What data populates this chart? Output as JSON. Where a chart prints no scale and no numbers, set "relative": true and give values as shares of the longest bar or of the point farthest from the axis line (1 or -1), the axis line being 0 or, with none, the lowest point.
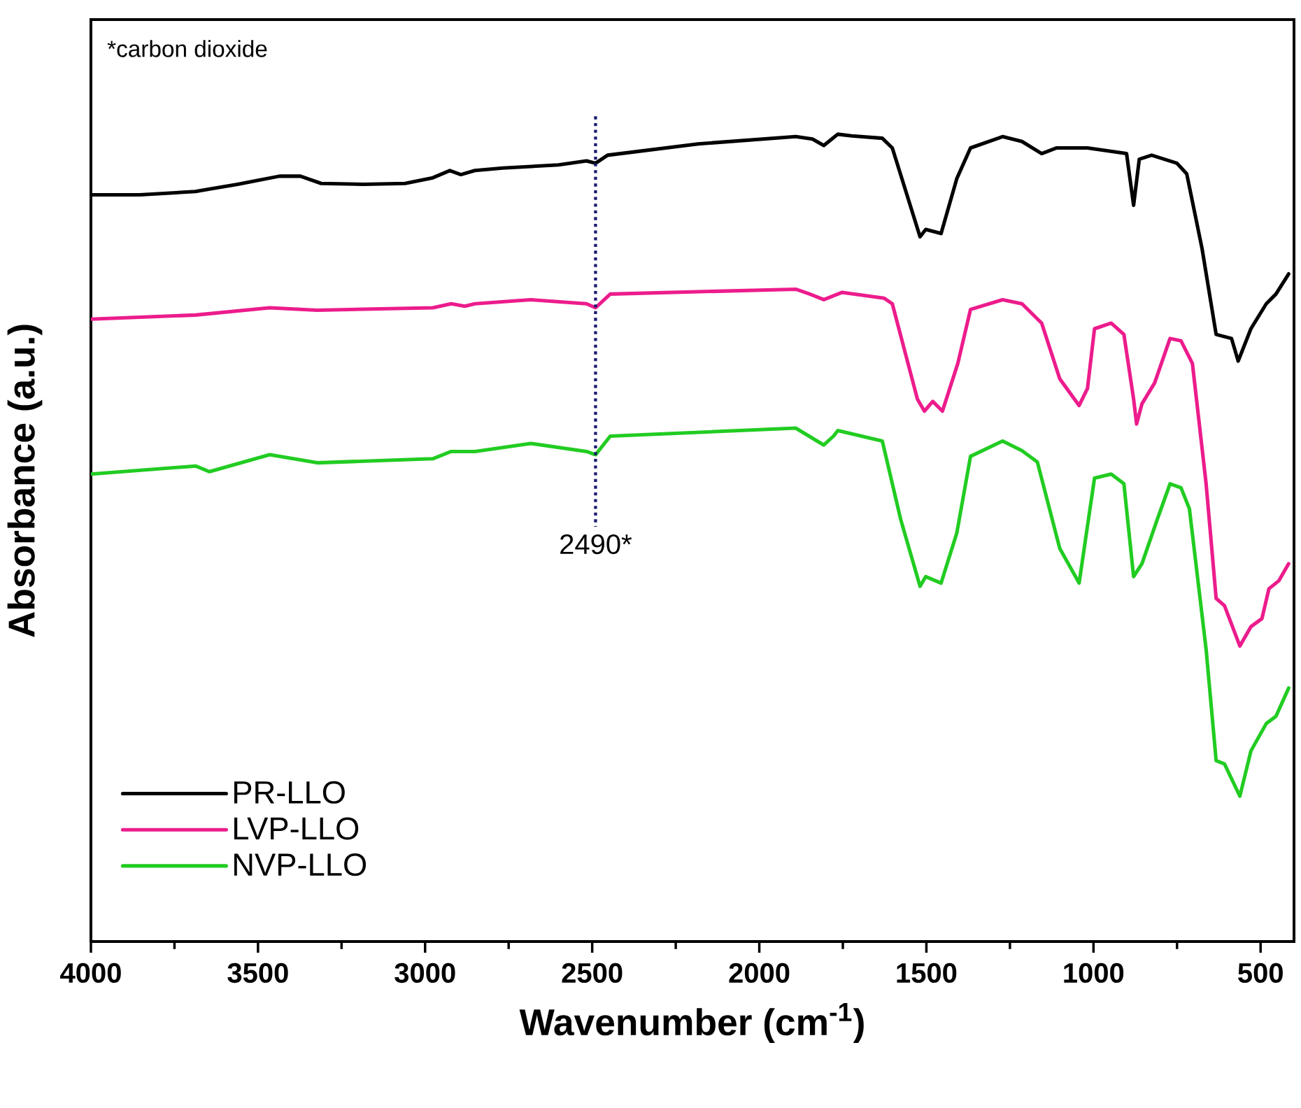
{
  "chart_data": {
    "type": "line",
    "relative": true,
    "xlabel": "Wavenumber (cm$^{-1}$)",
    "ylabel": "Absorbance (a.u.)",
    "xlim": [
      4000,
      400
    ],
    "xticks": [
      4000,
      3500,
      3000,
      2500,
      2000,
      1500,
      1000,
      500
    ],
    "legend": "bottom left",
    "marker": "none",
    "line_style": "solid",
    "annotations": [
      "*carbon dioxide"
    ],
    "ref_lines": [
      {
        "axis": "x",
        "value": 2490,
        "label": "2490*",
        "color": "#1a1a6e",
        "line_style": "dotted"
      }
    ],
    "series": [
      {
        "name": "PR-LLO",
        "color": "#000000",
        "x": [
          4000,
          3854,
          3687,
          3645,
          3561,
          3436,
          3373,
          3311,
          3185,
          3060,
          2977,
          2926,
          2893,
          2851,
          2768,
          2601,
          2517,
          2490,
          2454,
          2183,
          1891,
          1841,
          1807,
          1774,
          1765,
          1724,
          1632,
          1602,
          1519,
          1502,
          1456,
          1409,
          1368,
          1272,
          1214,
          1155,
          1110,
          1018,
          901,
          880,
          863,
          826,
          750,
          721,
          675,
          633,
          587,
          567,
          529,
          483,
          454,
          416
        ],
        "values": [
          0.925,
          0.925,
          0.929,
          0.932,
          0.938,
          0.948,
          0.948,
          0.939,
          0.938,
          0.939,
          0.946,
          0.955,
          0.95,
          0.955,
          0.958,
          0.962,
          0.967,
          0.964,
          0.974,
          0.988,
          0.997,
          0.994,
          0.986,
          0.997,
          1.0,
          0.998,
          0.995,
          0.983,
          0.873,
          0.882,
          0.877,
          0.945,
          0.983,
          0.997,
          0.991,
          0.976,
          0.983,
          0.983,
          0.976,
          0.912,
          0.969,
          0.974,
          0.964,
          0.951,
          0.858,
          0.752,
          0.747,
          0.719,
          0.759,
          0.79,
          0.802,
          0.827
        ]
      },
      {
        "name": "LVP-LLO",
        "color": "#ec1c8c",
        "x": [
          4000,
          3687,
          3465,
          3323,
          2977,
          2922,
          2881,
          2851,
          2684,
          2517,
          2490,
          2446,
          1891,
          1849,
          1807,
          1753,
          1627,
          1602,
          1527,
          1506,
          1481,
          1452,
          1406,
          1368,
          1272,
          1214,
          1155,
          1101,
          1043,
          1018,
          997,
          947,
          909,
          880,
          871,
          855,
          817,
          771,
          738,
          704,
          663,
          633,
          608,
          562,
          529,
          496,
          475,
          445,
          416
        ],
        "values": [
          0.771,
          0.776,
          0.785,
          0.782,
          0.785,
          0.79,
          0.787,
          0.79,
          0.795,
          0.79,
          0.785,
          0.802,
          0.808,
          0.802,
          0.795,
          0.804,
          0.797,
          0.79,
          0.672,
          0.657,
          0.669,
          0.657,
          0.716,
          0.783,
          0.795,
          0.79,
          0.766,
          0.697,
          0.664,
          0.685,
          0.759,
          0.766,
          0.752,
          0.672,
          0.641,
          0.666,
          0.692,
          0.747,
          0.744,
          0.716,
          0.567,
          0.425,
          0.416,
          0.366,
          0.39,
          0.4,
          0.437,
          0.447,
          0.468
        ]
      },
      {
        "name": "NVP-LLO",
        "color": "#22cc22",
        "x": [
          4000,
          3687,
          3645,
          3465,
          3323,
          2977,
          2922,
          2851,
          2684,
          2517,
          2490,
          2446,
          1891,
          1807,
          1778,
          1765,
          1632,
          1577,
          1519,
          1502,
          1456,
          1409,
          1368,
          1272,
          1214,
          1168,
          1101,
          1043,
          997,
          947,
          909,
          880,
          855,
          809,
          771,
          738,
          713,
          663,
          633,
          608,
          562,
          529,
          483,
          454,
          416
        ],
        "values": [
          0.579,
          0.589,
          0.582,
          0.603,
          0.593,
          0.598,
          0.607,
          0.607,
          0.617,
          0.607,
          0.603,
          0.626,
          0.636,
          0.615,
          0.626,
          0.633,
          0.62,
          0.523,
          0.44,
          0.452,
          0.444,
          0.506,
          0.601,
          0.62,
          0.608,
          0.594,
          0.487,
          0.444,
          0.574,
          0.579,
          0.567,
          0.452,
          0.468,
          0.523,
          0.567,
          0.562,
          0.536,
          0.362,
          0.224,
          0.22,
          0.18,
          0.236,
          0.27,
          0.279,
          0.314
        ]
      }
    ]
  }
}
